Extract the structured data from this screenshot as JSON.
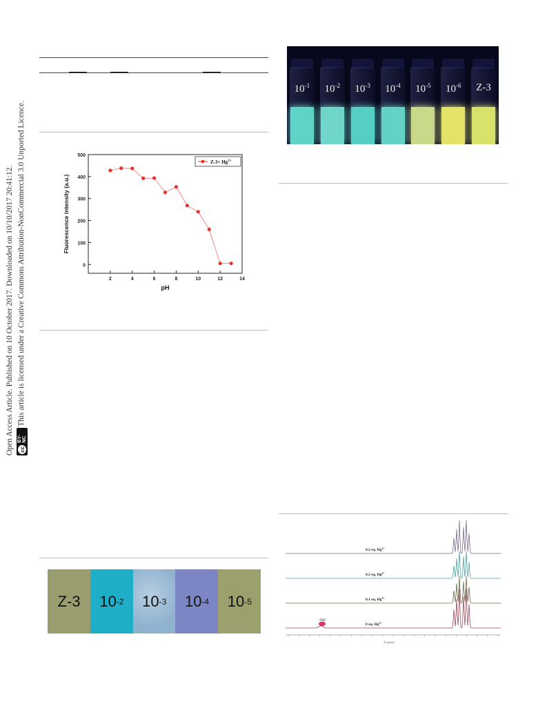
{
  "license": {
    "line1": "Open Access Article. Published on 10 October 2017. Downloaded on 10/10/2017 20:41:12.",
    "line2": "This article is licensed under a Creative Commons Attribution-NonCommercial 3.0 Unported Licence.",
    "badge_cc": "cc",
    "badge_text": "BY-NC"
  },
  "vial_photo": {
    "vials": [
      {
        "base": "10",
        "exp": "-1",
        "color": "#5fd3c6"
      },
      {
        "base": "10",
        "exp": "-2",
        "color": "#6fd6c9"
      },
      {
        "base": "10",
        "exp": "-3",
        "color": "#56cfc3"
      },
      {
        "base": "10",
        "exp": "-4",
        "color": "#62d2c4"
      },
      {
        "base": "10",
        "exp": "-5",
        "color": "#c9d98a"
      },
      {
        "base": "10",
        "exp": "-6",
        "color": "#e3e36a"
      },
      {
        "base": "Z-3",
        "exp": "",
        "color": "#d8e26a"
      }
    ]
  },
  "chart_data": {
    "type": "line",
    "title": "",
    "xlabel": "pH",
    "ylabel": "Fluorescence intensity (a.u.)",
    "xlim": [
      0,
      14
    ],
    "ylim": [
      -40,
      500
    ],
    "xticks": [
      2,
      4,
      6,
      8,
      10,
      12,
      14
    ],
    "yticks": [
      0,
      100,
      200,
      300,
      400,
      500
    ],
    "legend_position": "top-right",
    "color": "#e8322b",
    "series": [
      {
        "name": "Z-3+ Hg",
        "name_sup": "2+",
        "x": [
          2,
          3,
          4,
          5,
          6,
          7,
          8,
          9,
          10,
          11,
          12,
          13
        ],
        "y": [
          428,
          438,
          437,
          392,
          393,
          328,
          353,
          268,
          240,
          160,
          5,
          5
        ]
      }
    ]
  },
  "strip_photo": {
    "strips": [
      {
        "base": "Z-3",
        "exp": "",
        "color": "#9a9e6f"
      },
      {
        "base": "10",
        "exp": "-2",
        "color": "#1eaec7"
      },
      {
        "base": "10",
        "exp": "-3",
        "color": "#8fb2cf"
      },
      {
        "base": "10",
        "exp": "-4",
        "color": "#7d86c4"
      },
      {
        "base": "10",
        "exp": "-5",
        "color": "#9ca06d"
      }
    ]
  },
  "nmr": {
    "spectra": [
      {
        "label": "0.2 eq. Hg",
        "sup": "2+",
        "color": "#7a6a8a"
      },
      {
        "label": "0.2 eq. Hg",
        "sup": "2+",
        "color": "#4aa3a0"
      },
      {
        "label": "0.1 eq. Hg",
        "sup": "2+",
        "color": "#6b6b4a"
      },
      {
        "label": "0 eq. Hg",
        "sup": "2+",
        "color": "#9a4a5a"
      }
    ],
    "nh_label": "-NH",
    "nh_color": "#e0306a",
    "axis_label": "f1 (ppm)"
  }
}
